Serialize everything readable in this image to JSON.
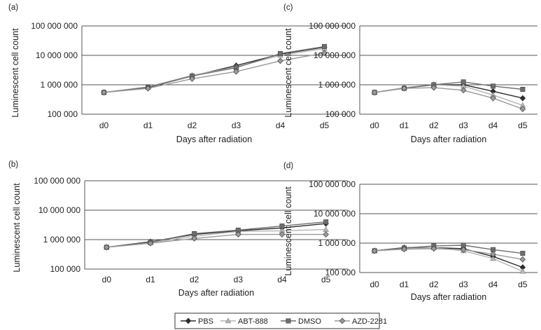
{
  "legend": {
    "entries": [
      {
        "name": "PBS",
        "color": "#2b2b2b",
        "marker": "diamond"
      },
      {
        "name": "ABT-888",
        "color": "#b4b4b4",
        "marker": "triangle"
      },
      {
        "name": "DMSO",
        "color": "#6e6e6e",
        "marker": "square"
      },
      {
        "name": "AZD-2281",
        "color": "#9a9a9a",
        "marker": "diamond"
      }
    ]
  },
  "chart_data": [
    {
      "panel": "(a)",
      "type": "line",
      "xlabel": "Days after radiation",
      "ylabel": "Luminescent cell count",
      "categories": [
        "d0",
        "d1",
        "d2",
        "d3",
        "d4",
        "d5"
      ],
      "yscale": "log",
      "ylim": [
        100000,
        100000000
      ],
      "yticks": [
        100000,
        1000000,
        10000000,
        100000000
      ],
      "ytick_labels": [
        "100 000",
        "1 000 000",
        "10 000 000",
        "100 000 000"
      ],
      "grid": "horizontal",
      "series": [
        {
          "name": "PBS",
          "values": [
            550000,
            800000,
            2000000,
            4500000,
            11000000,
            19000000
          ]
        },
        {
          "name": "ABT-888",
          "values": [
            550000,
            850000,
            2100000,
            4000000,
            10000000,
            17000000
          ]
        },
        {
          "name": "DMSO",
          "values": [
            550000,
            820000,
            2000000,
            3800000,
            11500000,
            20000000
          ]
        },
        {
          "name": "AZD-2281",
          "values": [
            550000,
            750000,
            1600000,
            2800000,
            6500000,
            12000000
          ]
        }
      ]
    },
    {
      "panel": "(b)",
      "type": "line",
      "xlabel": "Days after radiation",
      "ylabel": "Luminescent cell count",
      "categories": [
        "d0",
        "d1",
        "d2",
        "d3",
        "d4",
        "d5"
      ],
      "yscale": "log",
      "ylim": [
        100000,
        100000000
      ],
      "yticks": [
        100000,
        1000000,
        10000000,
        100000000
      ],
      "ytick_labels": [
        "100 000",
        "1 000 000",
        "10 000 000",
        "100 000 000"
      ],
      "grid": "horizontal",
      "series": [
        {
          "name": "PBS",
          "values": [
            550000,
            850000,
            1500000,
            2000000,
            2500000,
            3500000
          ]
        },
        {
          "name": "ABT-888",
          "values": [
            550000,
            780000,
            1300000,
            1900000,
            2000000,
            2200000
          ]
        },
        {
          "name": "DMSO",
          "values": [
            550000,
            820000,
            1600000,
            2100000,
            2900000,
            4000000
          ]
        },
        {
          "name": "AZD-2281",
          "values": [
            550000,
            750000,
            1100000,
            1500000,
            1500000,
            1500000
          ]
        }
      ]
    },
    {
      "panel": "(c)",
      "type": "line",
      "xlabel": "Days after radiation",
      "ylabel": "Luminescent cell count",
      "categories": [
        "d0",
        "d1",
        "d2",
        "d3",
        "d4",
        "d5"
      ],
      "yscale": "log",
      "ylim": [
        100000,
        100000000
      ],
      "yticks": [
        100000,
        1000000,
        10000000,
        100000000
      ],
      "ytick_labels": [
        "100 000",
        "1 000 000",
        "10 000 000",
        "100 000 000"
      ],
      "grid": "horizontal",
      "series": [
        {
          "name": "PBS",
          "values": [
            550000,
            780000,
            1000000,
            1000000,
            600000,
            350000
          ]
        },
        {
          "name": "ABT-888",
          "values": [
            550000,
            800000,
            1000000,
            900000,
            450000,
            200000
          ]
        },
        {
          "name": "DMSO",
          "values": [
            550000,
            760000,
            1000000,
            1250000,
            900000,
            700000
          ]
        },
        {
          "name": "AZD-2281",
          "values": [
            550000,
            750000,
            800000,
            650000,
            350000,
            150000
          ]
        }
      ]
    },
    {
      "panel": "(d)",
      "type": "line",
      "xlabel": "Days after radiation",
      "ylabel": "Luminescent cell count",
      "categories": [
        "d0",
        "d1",
        "d2",
        "d3",
        "d4",
        "d5"
      ],
      "yscale": "log",
      "ylim": [
        100000,
        100000000
      ],
      "yticks": [
        100000,
        1000000,
        10000000,
        100000000
      ],
      "ytick_labels": [
        "100 000",
        "1 000 000",
        "10 000 000",
        "100 000 000"
      ],
      "grid": "horizontal",
      "series": [
        {
          "name": "PBS",
          "values": [
            550000,
            700000,
            700000,
            650000,
            350000,
            150000
          ]
        },
        {
          "name": "ABT-888",
          "values": [
            550000,
            650000,
            700000,
            550000,
            300000,
            110000
          ]
        },
        {
          "name": "DMSO",
          "values": [
            550000,
            680000,
            800000,
            850000,
            600000,
            450000
          ]
        },
        {
          "name": "AZD-2281",
          "values": [
            550000,
            620000,
            650000,
            600000,
            420000,
            280000
          ]
        }
      ]
    }
  ]
}
